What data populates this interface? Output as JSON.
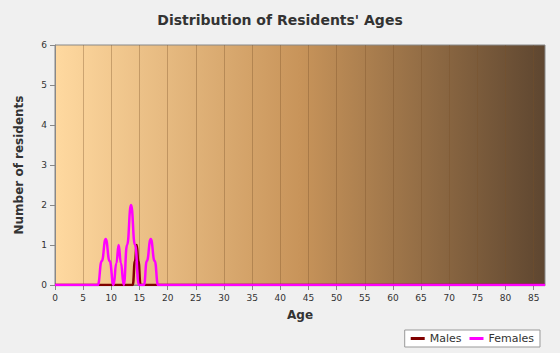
{
  "chart_data": {
    "type": "line",
    "title": "Distribution of Residents' Ages",
    "x_label": "Age",
    "y_label": "Number of residents",
    "xlim": [
      0,
      87
    ],
    "xticks": [
      0,
      5,
      10,
      15,
      20,
      25,
      30,
      35,
      40,
      45,
      50,
      55,
      60,
      65,
      70,
      75,
      80,
      85
    ],
    "ylim": [
      0,
      6
    ],
    "yticks": [
      0,
      1,
      2,
      3,
      4,
      5,
      6
    ],
    "grid": true,
    "legend": "bottom right",
    "series": [
      {
        "name": "Males",
        "color": "#800000",
        "x": [
          0,
          13.8,
          14.2,
          14.5,
          14.8,
          15.2,
          87
        ],
        "values": [
          0,
          0,
          0.6,
          1,
          0.6,
          0,
          0
        ]
      },
      {
        "name": "Females",
        "color": "#ff00ff",
        "x": [
          0,
          7.6,
          8.3,
          9,
          9.7,
          10.4,
          10.9,
          11.3,
          11.7,
          12.2,
          12.8,
          13.5,
          14.2,
          14.9,
          15.8,
          16.3,
          17,
          17.7,
          18.3,
          87
        ],
        "values": [
          0,
          0,
          0.6,
          1.15,
          0.6,
          0,
          0.55,
          1,
          0.55,
          0,
          1,
          2,
          1,
          0,
          0,
          0.6,
          1.15,
          0.6,
          0,
          0
        ]
      }
    ]
  }
}
